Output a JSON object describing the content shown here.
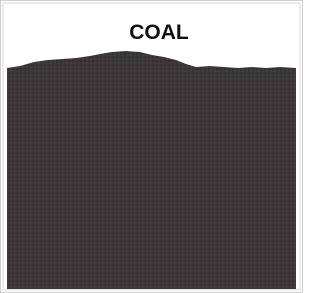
{
  "label": "COAL"
}
